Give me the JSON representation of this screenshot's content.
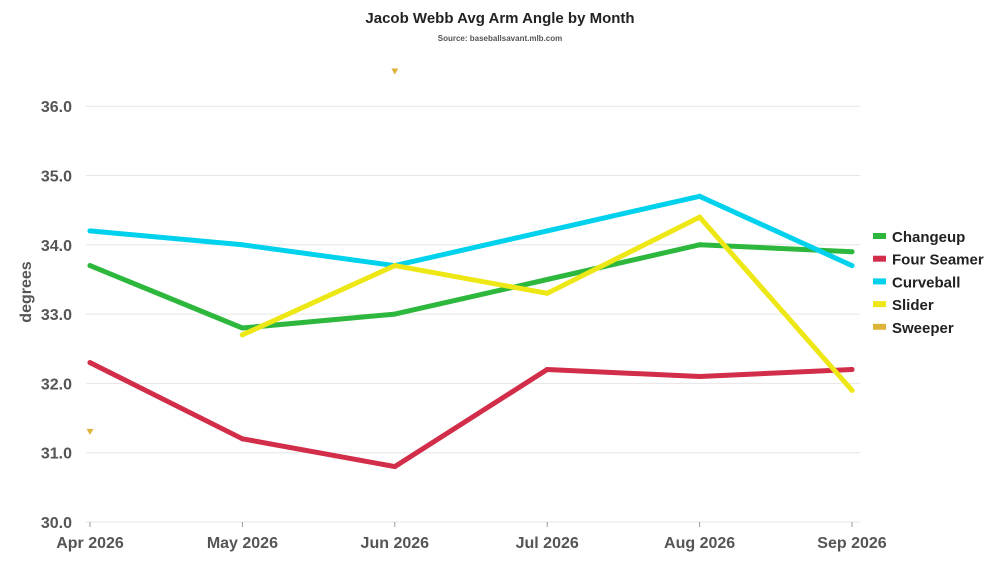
{
  "chart_data": {
    "type": "line",
    "title": "Jacob Webb Avg Arm Angle by Month",
    "subtitle": "Source: baseballsavant.mlb.com",
    "xlabel": "",
    "ylabel": "degrees",
    "categories": [
      "Apr 2026",
      "May 2026",
      "Jun 2026",
      "Jul 2026",
      "Aug 2026",
      "Sep 2026"
    ],
    "ylim": [
      30.0,
      36.7
    ],
    "yticks": [
      "30.0",
      "31.0",
      "32.0",
      "33.0",
      "34.0",
      "35.0",
      "36.0"
    ],
    "grid": true,
    "legend_position": "right",
    "series": [
      {
        "name": "Changeup",
        "color": "#2db83d",
        "values": [
          33.7,
          32.8,
          33.0,
          33.5,
          34.0,
          33.9
        ]
      },
      {
        "name": "Four Seamer",
        "color": "#d22d49",
        "values": [
          32.3,
          31.2,
          30.8,
          32.2,
          32.1,
          32.2
        ]
      },
      {
        "name": "Curveball",
        "color": "#00d1ed",
        "values": [
          34.2,
          34.0,
          33.7,
          34.2,
          34.7,
          33.7
        ]
      },
      {
        "name": "Slider",
        "color": "#eee716",
        "values": [
          null,
          32.7,
          33.7,
          33.3,
          34.4,
          31.9
        ]
      },
      {
        "name": "Sweeper",
        "color": "#ddb33a",
        "marker_only": true,
        "values": [
          31.3,
          null,
          36.5,
          null,
          null,
          null
        ]
      }
    ]
  }
}
